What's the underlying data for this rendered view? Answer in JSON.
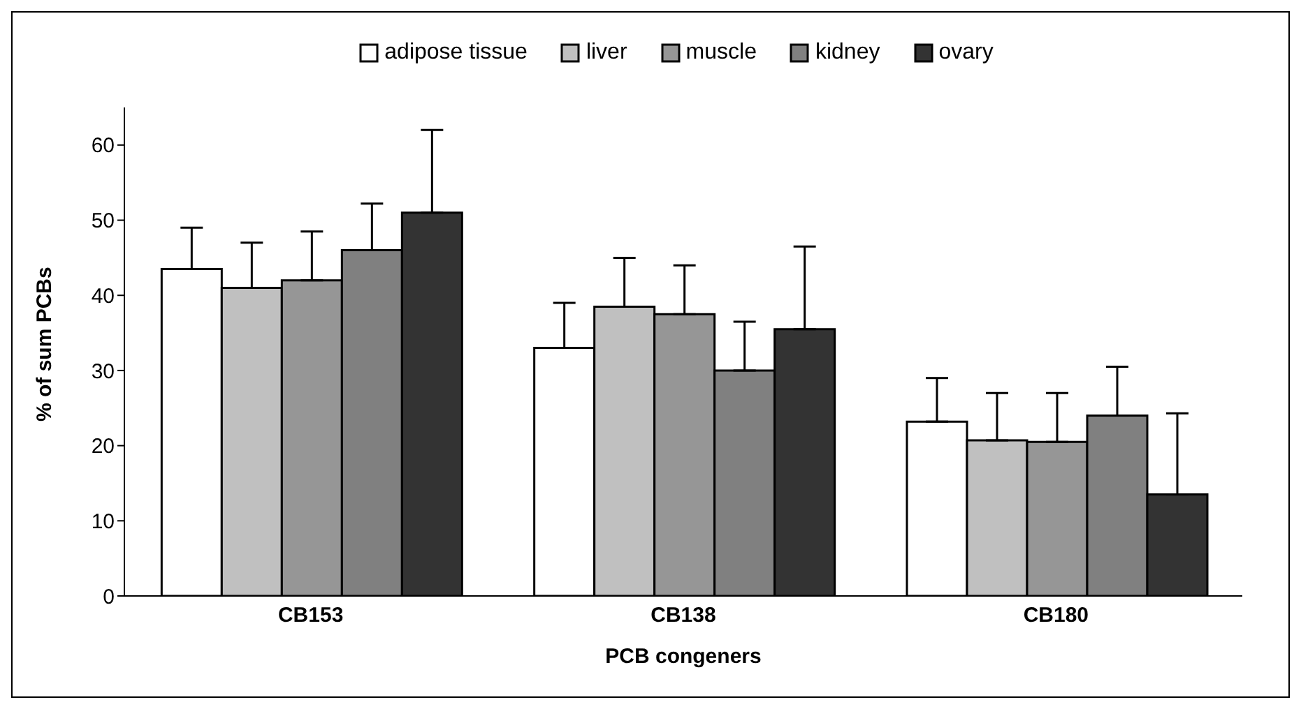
{
  "chart_data": {
    "type": "bar",
    "xlabel": "PCB congeners",
    "ylabel": "% of sum PCBs",
    "categories": [
      "CB153",
      "CB138",
      "CB180"
    ],
    "series": [
      {
        "name": "adipose tissue",
        "color": "#ffffff",
        "values": [
          43.5,
          33,
          23.2
        ],
        "errors": [
          [
            43.5,
            49
          ],
          [
            33,
            39
          ],
          [
            23.2,
            29
          ]
        ]
      },
      {
        "name": "liver",
        "color": "#c0c0c0",
        "values": [
          41,
          38.5,
          20.7
        ],
        "errors": [
          [
            41,
            47
          ],
          [
            38.5,
            45
          ],
          [
            20.7,
            27
          ]
        ]
      },
      {
        "name": "muscle",
        "color": "#969696",
        "values": [
          42,
          37.5,
          20.5
        ],
        "errors": [
          [
            42,
            48.5
          ],
          [
            37.5,
            44
          ],
          [
            20.5,
            27
          ]
        ]
      },
      {
        "name": "kidney",
        "color": "#808080",
        "values": [
          46,
          30,
          24
        ],
        "errors": [
          [
            46,
            52.2
          ],
          [
            30,
            36.5
          ],
          [
            24,
            30.5
          ]
        ]
      },
      {
        "name": "ovary",
        "color": "#333333",
        "values": [
          51,
          35.5,
          13.5
        ],
        "errors": [
          [
            51,
            62
          ],
          [
            35.5,
            46.5
          ],
          [
            13.5,
            24.3
          ]
        ]
      }
    ],
    "ylim": [
      0,
      65
    ],
    "yticks": [
      0,
      10,
      20,
      30,
      40,
      50,
      60
    ],
    "grid": false,
    "legend": "top"
  }
}
